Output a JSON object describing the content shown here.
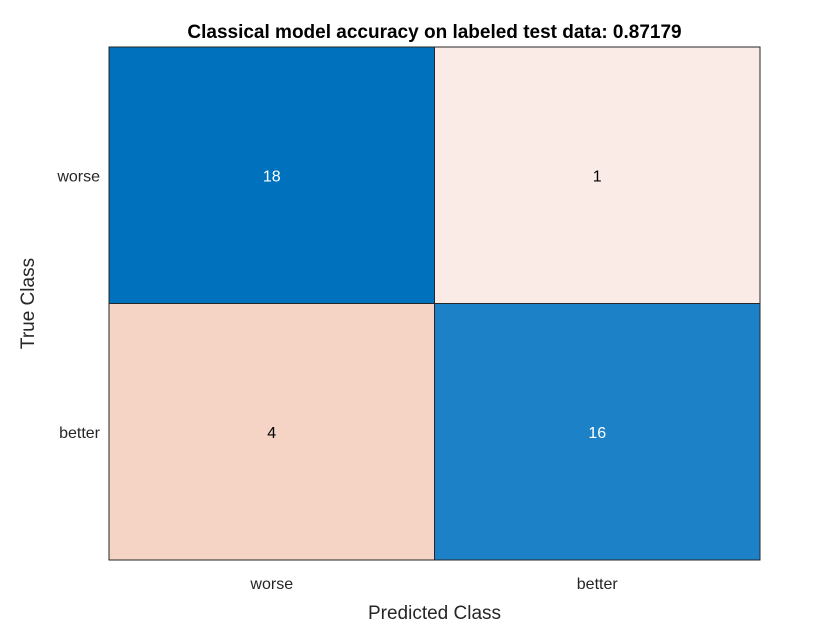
{
  "chart_data": {
    "type": "heatmap",
    "title": "Classical model accuracy on labeled test data: 0.87179",
    "xlabel": "Predicted Class",
    "ylabel": "True Class",
    "x_categories": [
      "worse",
      "better"
    ],
    "y_categories": [
      "worse",
      "better"
    ],
    "values": [
      [
        18,
        1
      ],
      [
        4,
        16
      ]
    ],
    "colors": {
      "diagonal_max": "#0072BD",
      "diagonal_min": "#1C81C6",
      "offdiag_max": "#F5D3C5",
      "offdiag_min": "#FAEBE7",
      "text_dark": "#000000",
      "text_light": "#ffffff"
    },
    "grid": true,
    "legend": "none"
  }
}
